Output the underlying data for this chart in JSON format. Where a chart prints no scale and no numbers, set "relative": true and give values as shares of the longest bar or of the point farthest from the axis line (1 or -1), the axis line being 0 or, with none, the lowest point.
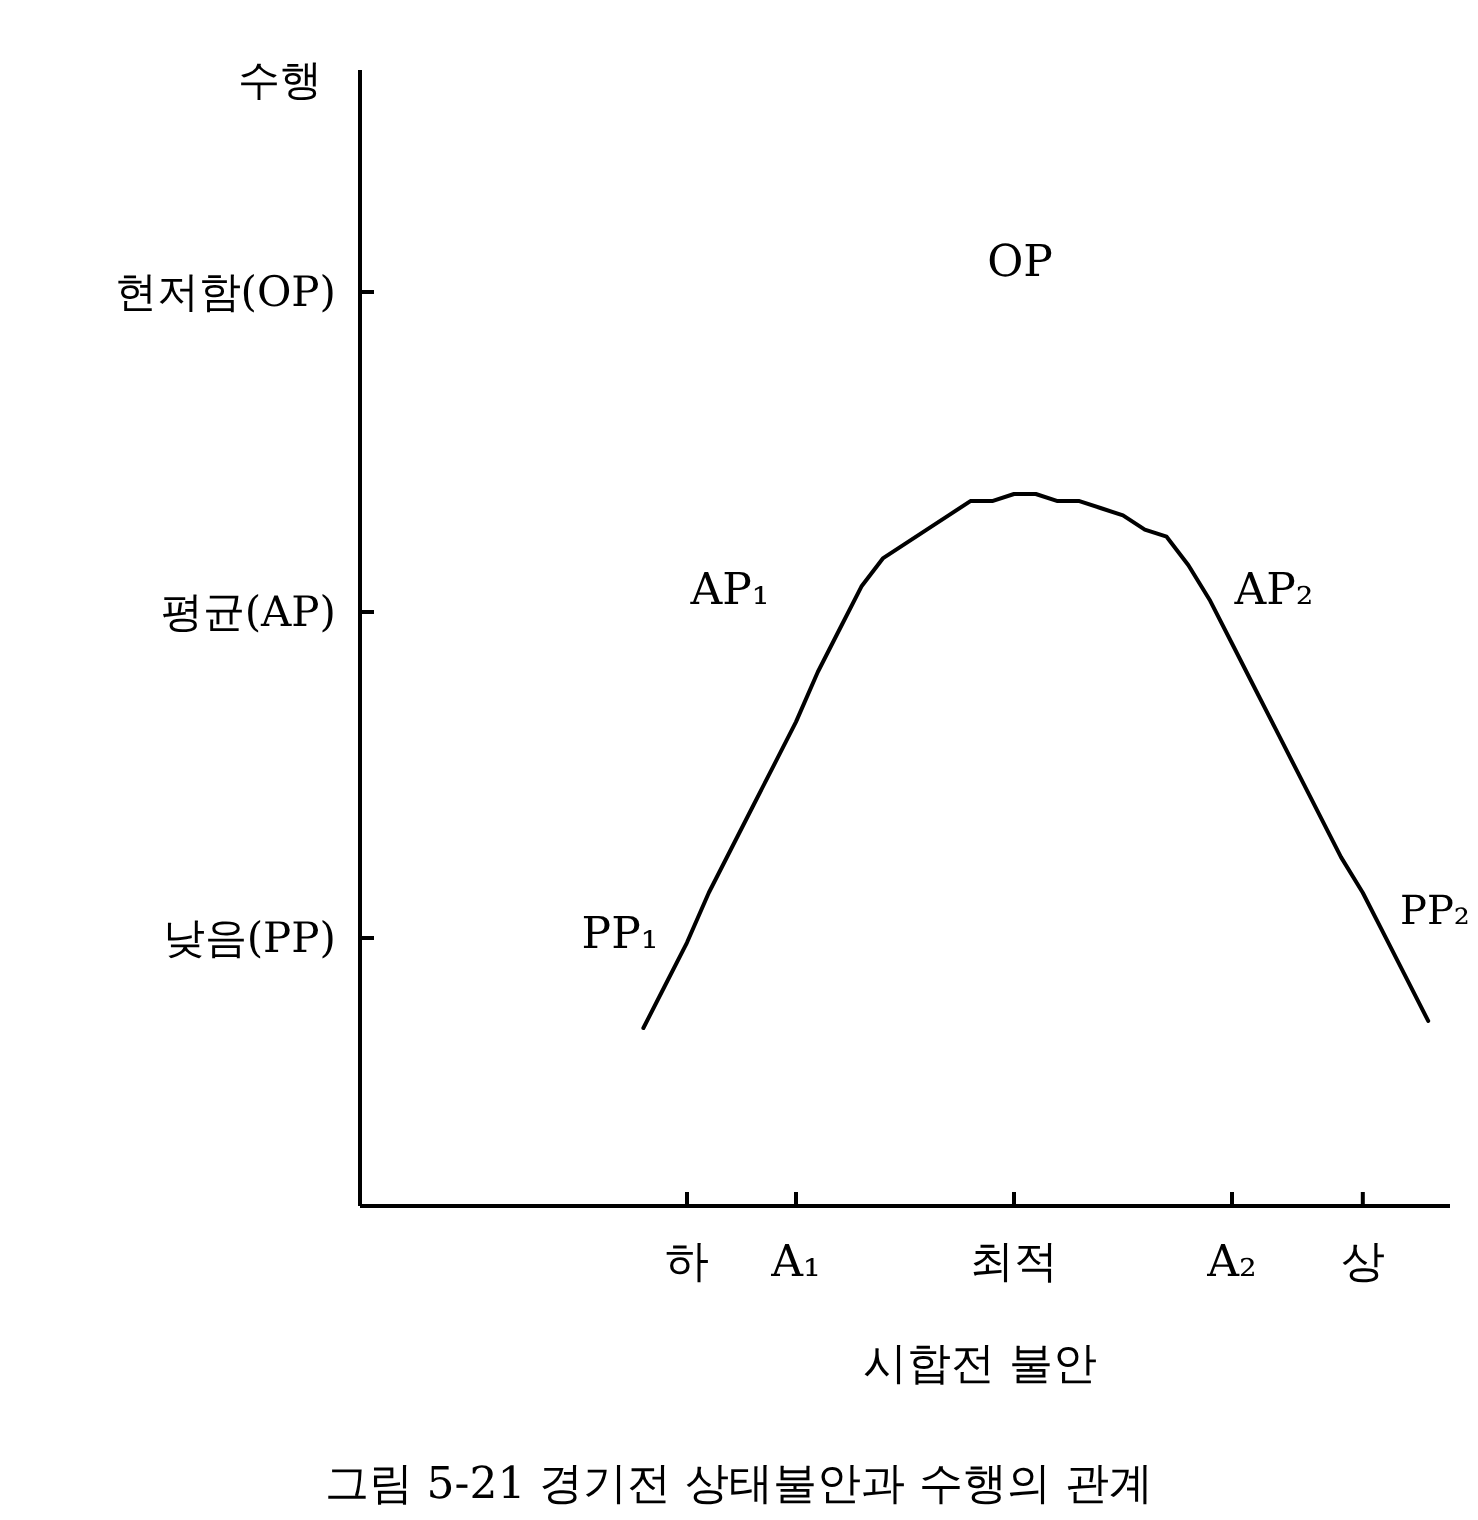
{
  "chart_data": {
    "type": "line",
    "relative": true,
    "xlabel": "시합전 불안",
    "categories": [
      null,
      null,
      null,
      null,
      null,
      null,
      null,
      null,
      null,
      null,
      null,
      null,
      null,
      null,
      null,
      "하",
      null,
      null,
      null,
      null,
      "A₁",
      null,
      null,
      null,
      null,
      null,
      null,
      null,
      null,
      null,
      "최적",
      null,
      null,
      null,
      null,
      null,
      null,
      null,
      null,
      null,
      "A₂",
      null,
      null,
      null,
      null,
      null,
      "상",
      null,
      null,
      null,
      null
    ],
    "series": [
      {
        "color": "#000000",
        "values": [
          null,
          null,
          null,
          null,
          null,
          null,
          null,
          null,
          null,
          null,
          null,
          null,
          null,
          0.25,
          0.31,
          0.37,
          0.44,
          0.5,
          0.56,
          0.62,
          0.68,
          0.75,
          0.81,
          0.87,
          0.91,
          0.93,
          0.95,
          0.97,
          0.99,
          0.99,
          1.0,
          1.0,
          0.99,
          0.99,
          0.98,
          0.97,
          0.95,
          0.94,
          0.9,
          0.85,
          0.79,
          0.73,
          0.67,
          0.61,
          0.55,
          0.49,
          0.44,
          0.38,
          0.32,
          0.26,
          null
        ]
      }
    ],
    "annotations": [
      "수행",
      "OP",
      "AP₁",
      "AP₂",
      "PP₁",
      "PP₂",
      "현저함(OP)",
      "평균(AP)",
      "낮음(PP)",
      "그림 5-21 경기전 상태불안과 수행의 관계"
    ]
  }
}
